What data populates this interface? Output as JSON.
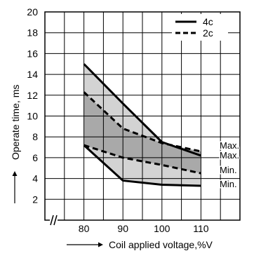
{
  "chart_data": {
    "type": "line",
    "xlabel": "Coil applied voltage,%V",
    "ylabel": "Operate time, ms",
    "xlim": [
      70,
      120
    ],
    "ylim": [
      0,
      20
    ],
    "x_ticks": [
      80,
      90,
      100,
      110
    ],
    "y_ticks": [
      2,
      4,
      6,
      8,
      10,
      12,
      14,
      16,
      18,
      20
    ],
    "grid": true,
    "axis_break": "x",
    "legend_position": "top-right",
    "legend": [
      {
        "label": "4c",
        "style": "solid"
      },
      {
        "label": "2c",
        "style": "dashed"
      }
    ],
    "series": [
      {
        "name": "4c",
        "curve": "Max.",
        "style": "solid",
        "x": [
          80,
          90,
          100,
          110
        ],
        "values": [
          15.0,
          11.2,
          7.5,
          6.2
        ]
      },
      {
        "name": "4c",
        "curve": "Min.",
        "style": "solid",
        "x": [
          80,
          90,
          100,
          110
        ],
        "values": [
          7.2,
          3.8,
          3.4,
          3.3
        ]
      },
      {
        "name": "2c",
        "curve": "Max.",
        "style": "dashed",
        "x": [
          80,
          90,
          100,
          110
        ],
        "values": [
          12.3,
          8.8,
          7.4,
          6.6
        ]
      },
      {
        "name": "2c",
        "curve": "Min.",
        "style": "dashed",
        "x": [
          80,
          90,
          100,
          110
        ],
        "values": [
          7.2,
          6.0,
          5.3,
          4.5
        ]
      }
    ],
    "end_labels": [
      "Max.",
      "Max.",
      "Min.",
      "Min."
    ],
    "colors": {
      "band_light": "#d3d3d3",
      "band_dark": "#a9a9a9",
      "line": "#000000",
      "grid": "#000000"
    }
  }
}
